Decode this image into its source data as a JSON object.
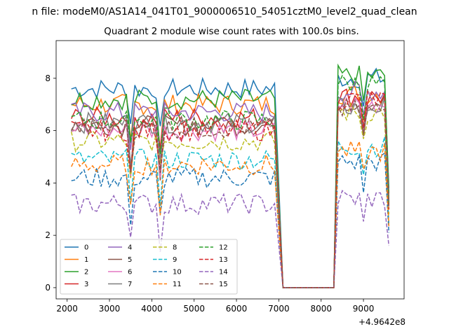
{
  "figure": {
    "suptitle": "n file: modeM0/AS1A14_041T01_9000006510_54051cztM0_level2_quad_clean",
    "offset_label": "+4.9642e8"
  },
  "chart_data": {
    "type": "line",
    "title": "Quadrant 2 module wise count rates with 100.0s bins.",
    "xlabel": "",
    "ylabel": "",
    "x_offset": 496420000,
    "xlim": [
      1740,
      9960
    ],
    "ylim": [
      -0.43,
      9.44
    ],
    "xticks": [
      2000,
      3000,
      4000,
      5000,
      6000,
      7000,
      8000,
      9000
    ],
    "yticks": [
      0,
      2,
      4,
      6,
      8
    ],
    "grid": false,
    "legend_position": "lower-left",
    "legend_columns": 4,
    "segments": [
      {
        "start": 2100,
        "end": 6900,
        "levels": [
          7.3,
          6.5
        ],
        "dip_at": 3500,
        "dip2_at": 4200
      },
      {
        "start": 6900,
        "end": 7100,
        "drop": true
      },
      {
        "start": 7100,
        "end": 8300,
        "flat": 0
      },
      {
        "start": 8300,
        "end": 9600,
        "levels": [
          7.6,
          7.0
        ]
      }
    ],
    "series": [
      {
        "name": "0",
        "color": "#1f77b4",
        "style": "solid",
        "level": 7.6,
        "late": 8.0
      },
      {
        "name": "1",
        "color": "#ff7f0e",
        "style": "solid",
        "level": 7.0,
        "late": 7.4
      },
      {
        "name": "2",
        "color": "#2ca02c",
        "style": "solid",
        "level": 7.2,
        "late": 8.1
      },
      {
        "name": "3",
        "color": "#d62728",
        "style": "solid",
        "level": 6.5,
        "late": 7.3
      },
      {
        "name": "4",
        "color": "#9467bd",
        "style": "solid",
        "level": 6.7,
        "late": 7.5
      },
      {
        "name": "5",
        "color": "#8c564b",
        "style": "solid",
        "level": 6.2,
        "late": 7.1
      },
      {
        "name": "6",
        "color": "#e377c2",
        "style": "solid",
        "level": 6.0,
        "late": 7.0
      },
      {
        "name": "7",
        "color": "#7f7f7f",
        "style": "solid",
        "level": 6.3,
        "late": 6.9
      },
      {
        "name": "8",
        "color": "#bcbd22",
        "style": "dashed",
        "level": 5.6,
        "late": 6.7
      },
      {
        "name": "9",
        "color": "#17becf",
        "style": "dashed",
        "level": 4.9,
        "late": 5.4
      },
      {
        "name": "10",
        "color": "#1f77b4",
        "style": "dashed",
        "level": 4.2,
        "late": 4.8
      },
      {
        "name": "11",
        "color": "#ff7f0e",
        "style": "dashed",
        "level": 4.7,
        "late": 5.2
      },
      {
        "name": "12",
        "color": "#2ca02c",
        "style": "dashed",
        "level": 6.4,
        "late": 7.8
      },
      {
        "name": "13",
        "color": "#d62728",
        "style": "dashed",
        "level": 6.0,
        "late": 7.2
      },
      {
        "name": "14",
        "color": "#9467bd",
        "style": "dashed",
        "level": 3.2,
        "late": 3.4
      },
      {
        "name": "15",
        "color": "#8c564b",
        "style": "dashed",
        "level": 6.1,
        "late": 6.8
      }
    ]
  }
}
